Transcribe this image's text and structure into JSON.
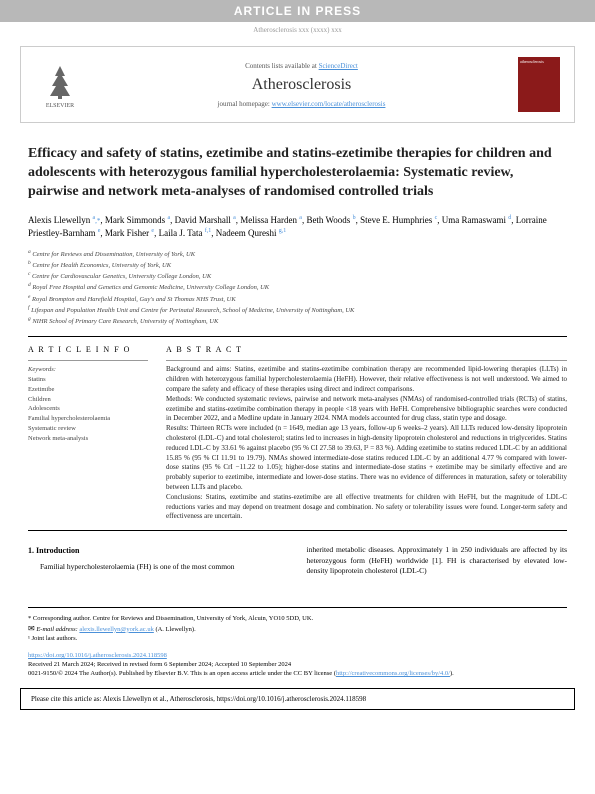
{
  "banner": "ARTICLE IN PRESS",
  "refLine": "Atherosclerosis xxx (xxxx) xxx",
  "header": {
    "contentsText": "Contents lists available at ",
    "contentsLink": "ScienceDirect",
    "journalName": "Atherosclerosis",
    "homepageText": "journal homepage: ",
    "homepageLink": "www.elsevier.com/locate/atherosclerosis",
    "publisher": "ELSEVIER"
  },
  "title": "Efficacy and safety of statins, ezetimibe and statins-ezetimibe therapies for children and adolescents with heterozygous familial hypercholesterolaemia: Systematic review, pairwise and network meta-analyses of randomised controlled trials",
  "authors": [
    {
      "name": "Alexis Llewellyn",
      "sup": "a,*"
    },
    {
      "name": "Mark Simmonds",
      "sup": "a"
    },
    {
      "name": "David Marshall",
      "sup": "a"
    },
    {
      "name": "Melissa Harden",
      "sup": "a"
    },
    {
      "name": "Beth Woods",
      "sup": "b"
    },
    {
      "name": "Steve E. Humphries",
      "sup": "c"
    },
    {
      "name": "Uma Ramaswami",
      "sup": "d"
    },
    {
      "name": "Lorraine Priestley-Barnham",
      "sup": "e"
    },
    {
      "name": "Mark Fisher",
      "sup": "e"
    },
    {
      "name": "Laila J. Tata",
      "sup": "f,1"
    },
    {
      "name": "Nadeem Qureshi",
      "sup": "g,1"
    }
  ],
  "affiliations": [
    {
      "sup": "a",
      "text": "Centre for Reviews and Dissemination, University of York, UK"
    },
    {
      "sup": "b",
      "text": "Centre for Health Economics, University of York, UK"
    },
    {
      "sup": "c",
      "text": "Centre for Cardiovascular Genetics, University College London, UK"
    },
    {
      "sup": "d",
      "text": "Royal Free Hospital and Genetics and Genomic Medicine, University College London, UK"
    },
    {
      "sup": "e",
      "text": "Royal Brompton and Harefield Hospital, Guy's and St Thomas NHS Trust, UK"
    },
    {
      "sup": "f",
      "text": "Lifespan and Population Health Unit and Centre for Perinatal Research, School of Medicine, University of Nottingham, UK"
    },
    {
      "sup": "g",
      "text": "NIHR School of Primary Care Research, University of Nottingham, UK"
    }
  ],
  "articleInfoHead": "A R T I C L E  I N F O",
  "abstractHead": "A B S T R A C T",
  "keywordsLabel": "Keywords:",
  "keywords": [
    "Statins",
    "Ezetimibe",
    "Children",
    "Adolescents",
    "Familial hypercholesterolaemia",
    "Systematic review",
    "Network meta-analysis"
  ],
  "abstract": {
    "background": "Background and aims: Statins, ezetimibe and statins-ezetimibe combination therapy are recommended lipid-lowering therapies (LLTs) in children with heterozygous familial hypercholesterolaemia (HeFH). However, their relative effectiveness is not well understood. We aimed to compare the safety and efficacy of these therapies using direct and indirect comparisons.",
    "methods": "Methods: We conducted systematic reviews, pairwise and network meta-analyses (NMAs) of randomised-controlled trials (RCTs) of statins, ezetimibe and statins-ezetimibe combination therapy in people <18 years with HeFH. Comprehensive bibliographic searches were conducted in December 2022, and a Medline update in January 2024. NMA models accounted for drug class, statin type and dosage.",
    "results": "Results: Thirteen RCTs were included (n = 1649, median age 13 years, follow-up 6 weeks–2 years). All LLTs reduced low-density lipoprotein cholesterol (LDL-C) and total cholesterol; statins led to increases in high-density lipoprotein cholesterol and reductions in triglycerides. Statins reduced LDL-C by 33.61 % against placebo (95 % CI 27.58 to 39.63, I² = 83 %). Adding ezetimibe to statins reduced LDL-C by an additional 15.85 % (95 % CI 11.91 to 19.79). NMAs showed intermediate-dose statins reduced LDL-C by an additional 4.77 % compared with lower-dose statins (95 % CrI −11.22 to 1.05); higher-dose statins and intermediate-dose statins + ezetimibe may be similarly effective and are probably superior to ezetimibe, intermediate and lower-dose statins. There was no evidence of differences in maturation, safety or tolerability between LLTs and placebo.",
    "conclusions": "Conclusions: Statins, ezetimibe and statins-ezetimibe are all effective treatments for children with HeFH, but the magnitude of LDL-C reductions varies and may depend on treatment dosage and combination. No safety or tolerability issues were found. Longer-term safety and effectiveness are uncertain."
  },
  "intro": {
    "head": "1. Introduction",
    "col1": "Familial hypercholesterolaemia (FH) is one of the most common",
    "col2": "inherited metabolic diseases. Approximately 1 in 250 individuals are affected by its heterozygous form (HeFH) worldwide [1]. FH is characterised by elevated low-density lipoprotein cholesterol (LDL-C)"
  },
  "footer": {
    "corresponding": "* Corresponding author. Centre for Reviews and Dissemination, University of York, Alcuin, YO10 5DD, UK.",
    "emailLabel": "E-mail address: ",
    "email": "alexis.llewellyn@york.ac.uk",
    "emailSuffix": " (A. Llewellyn).",
    "jointAuthors": "¹ Joint last authors."
  },
  "doi": {
    "link": "https://doi.org/10.1016/j.atherosclerosis.2024.118598",
    "received": "Received 21 March 2024; Received in revised form 6 September 2024; Accepted 10 September 2024",
    "copyright": "0021-9150/© 2024 The Author(s). Published by Elsevier B.V. This is an open access article under the CC BY license (",
    "ccLink": "http://creativecommons.org/licenses/by/4.0/",
    "copyrightEnd": ")."
  },
  "citeBox": "Please cite this article as: Alexis Llewellyn et al., Atherosclerosis, https://doi.org/10.1016/j.atherosclerosis.2024.118598"
}
